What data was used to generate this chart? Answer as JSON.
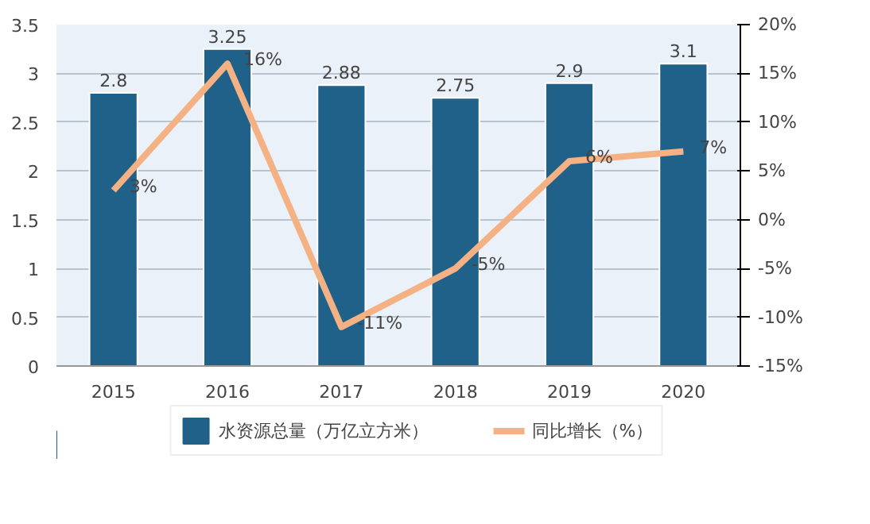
{
  "chart_data": {
    "type": "bar",
    "categories": [
      "2015",
      "2016",
      "2017",
      "2018",
      "2019",
      "2020"
    ],
    "series": [
      {
        "name": "水资源总量（万亿立方米）",
        "type": "bar",
        "color": "#1f6189",
        "values": [
          2.8,
          3.25,
          2.88,
          2.75,
          2.9,
          3.1
        ],
        "value_labels": [
          "2.8",
          "3.25",
          "2.88",
          "2.75",
          "2.9",
          "3.1"
        ]
      },
      {
        "name": "同比增长（%）",
        "type": "line",
        "axis": "y2",
        "color": "#f4b183",
        "values": [
          3,
          16,
          -11,
          -5,
          6,
          7
        ],
        "value_labels": [
          "3%",
          "16%",
          "-11%",
          "-5%",
          "6%",
          "7%"
        ]
      }
    ],
    "ylim": [
      0,
      3.5
    ],
    "yticks": [
      0,
      0.5,
      1,
      1.5,
      2,
      2.5,
      3,
      3.5
    ],
    "y2lim": [
      -15,
      20
    ],
    "y2ticks": [
      {
        "value": -15,
        "label": "-15%"
      },
      {
        "value": -10,
        "label": "-10%"
      },
      {
        "value": -5,
        "label": "-5%"
      },
      {
        "value": 0,
        "label": "0%"
      },
      {
        "value": 5,
        "label": "5%"
      },
      {
        "value": 10,
        "label": "10%"
      },
      {
        "value": 15,
        "label": "15%"
      },
      {
        "value": 20,
        "label": "20%"
      }
    ],
    "grid": "y",
    "legend": "bottom"
  }
}
